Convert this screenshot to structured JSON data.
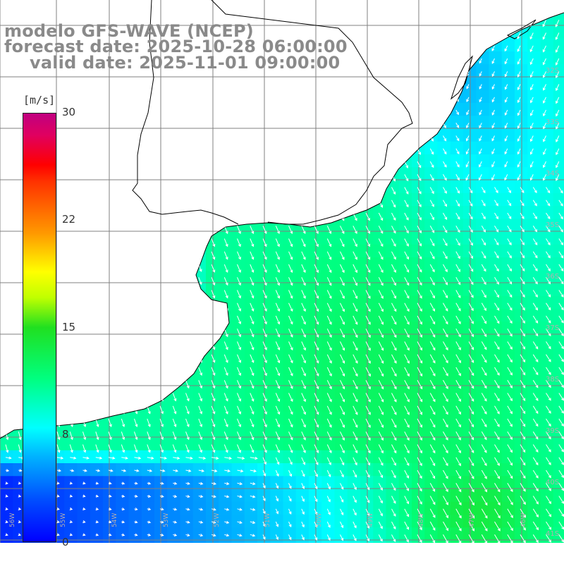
{
  "header": {
    "model_line": "modelo GFS-WAVE (NCEP)",
    "forecast_line": "forecast date: 2025-10-28 06:00:00",
    "valid_line": "valid date: 2025-11-01 09:00:00"
  },
  "colorbar": {
    "unit": "[m/s]",
    "ticks": [
      "30",
      "22",
      "15",
      "8",
      "0"
    ],
    "tick_values": [
      30,
      22,
      15,
      8,
      0
    ],
    "range": [
      0,
      30
    ]
  },
  "graticule": {
    "lon_labels": [
      "56W",
      "55W",
      "54W",
      "53W",
      "52W",
      "51W",
      "50W",
      "49W",
      "48W",
      "47W",
      "46W",
      "45W"
    ],
    "lat_labels": [
      "32S",
      "33S",
      "34S",
      "35S",
      "36S",
      "37S",
      "38S",
      "39S",
      "40S",
      "41S"
    ]
  },
  "map": {
    "variable": "wind-speed",
    "land_color": "#ffffff",
    "coast_color": "#000000",
    "grid_color": "#808080",
    "vector_color": "#ffffff"
  }
}
